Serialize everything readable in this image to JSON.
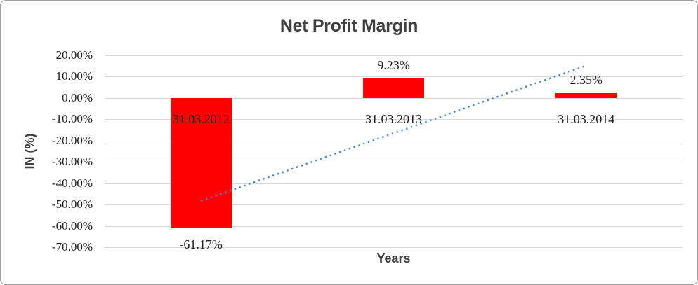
{
  "chart_data": {
    "type": "bar",
    "title": "Net Profit Margin",
    "xlabel": "Years",
    "ylabel": "IN (%)",
    "categories": [
      "31.03.2012",
      "31.03.2013",
      "31.03.2014"
    ],
    "values": [
      -61.17,
      9.23,
      2.35
    ],
    "data_labels": [
      "-61.17%",
      "9.23%",
      "2.35%"
    ],
    "y_ticks": [
      "20.00%",
      "10.00%",
      "0.00%",
      "-10.00%",
      "-20.00%",
      "-30.00%",
      "-40.00%",
      "-50.00%",
      "-60.00%",
      "-70.00%"
    ],
    "y_tick_values": [
      20,
      10,
      0,
      -10,
      -20,
      -30,
      -40,
      -50,
      -60,
      -70
    ],
    "ylim": [
      -70,
      20
    ],
    "grid": true,
    "legend": "none",
    "bar_color": "#ff0000",
    "gridline_color": "#d9d9d9",
    "trendline": {
      "style": "dotted",
      "color": "#4a86c8",
      "start_category_index": 0,
      "end_category_index": 2,
      "start_value": -48.3,
      "end_value": 15.2
    }
  }
}
